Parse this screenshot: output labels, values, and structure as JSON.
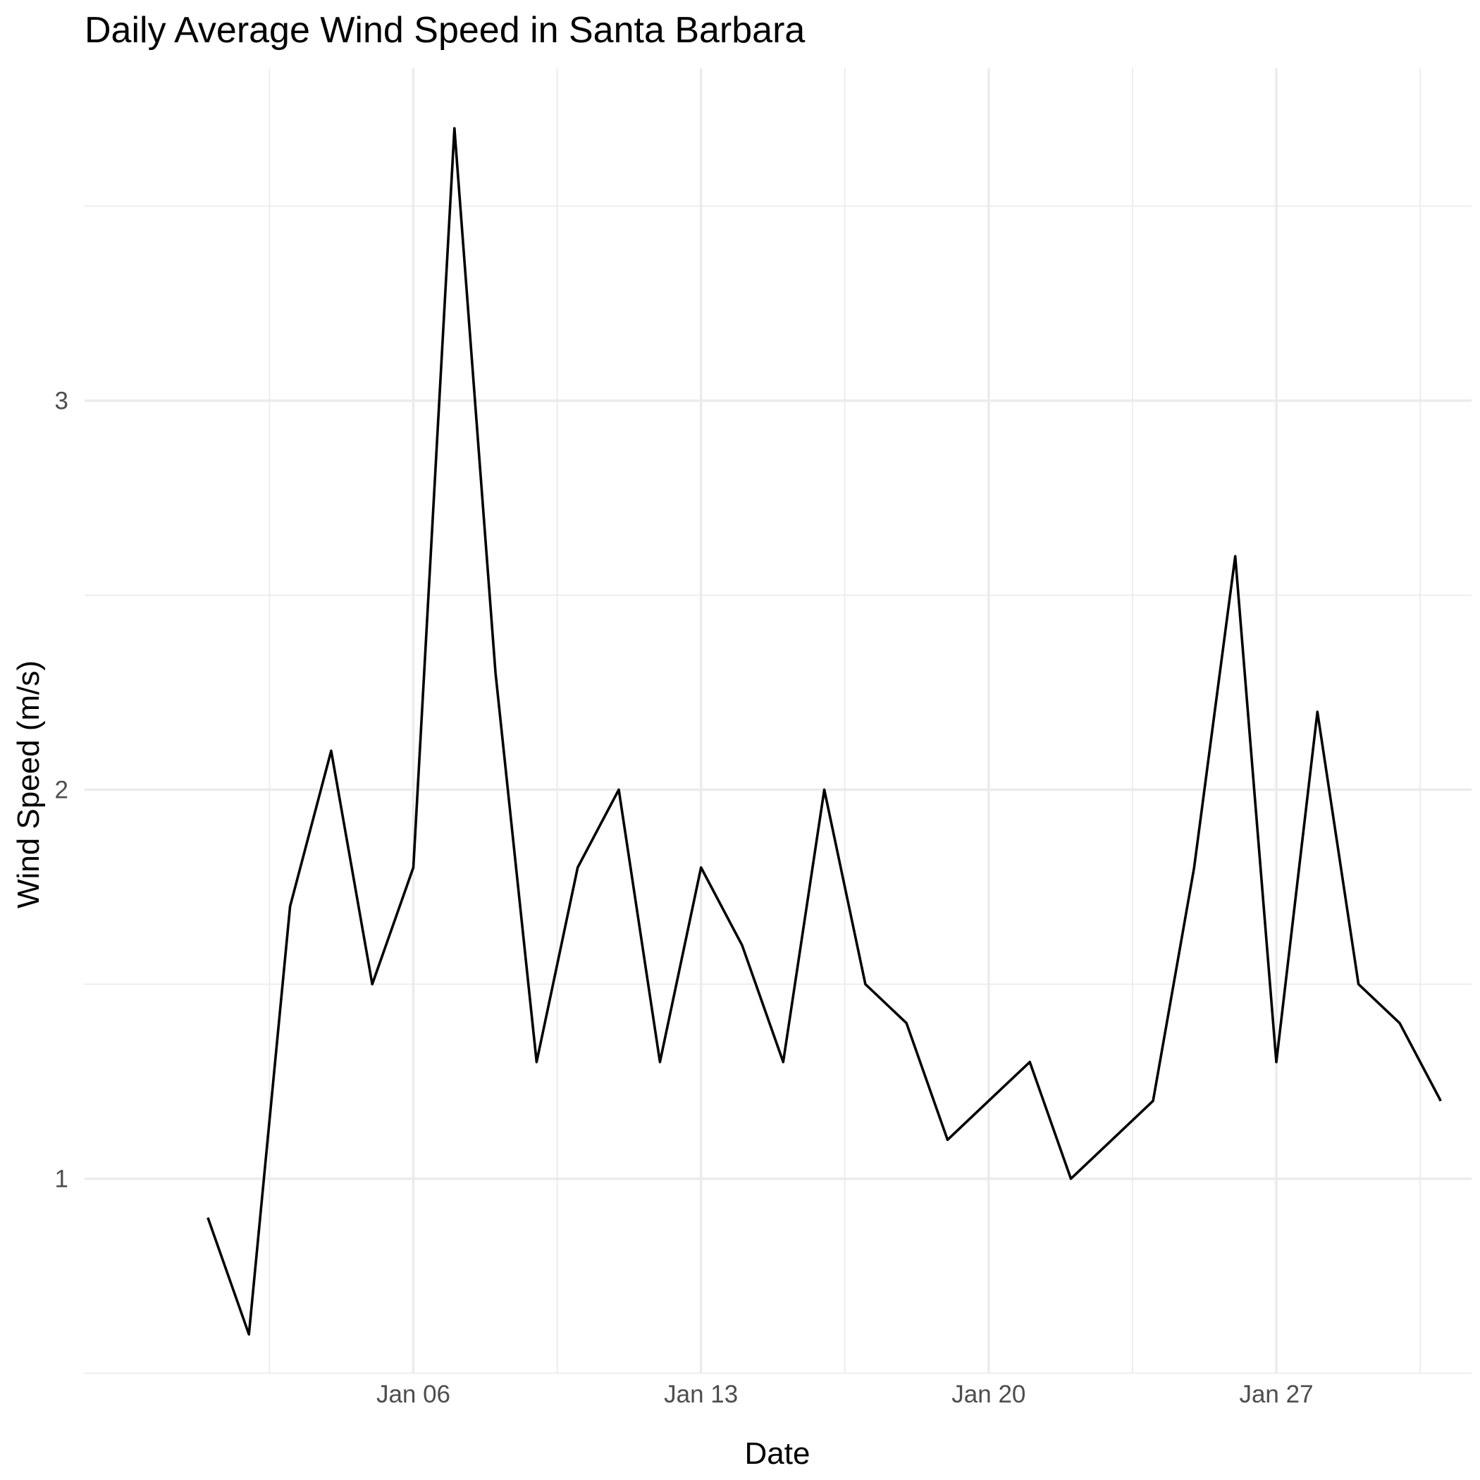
{
  "chart_data": {
    "type": "line",
    "title": "Daily Average Wind Speed in Santa Barbara",
    "xlabel": "Date",
    "ylabel": "Wind Speed (m/s)",
    "x_tick_labels": [
      "Jan 06",
      "Jan 13",
      "Jan 20",
      "Jan 27"
    ],
    "y_tick_labels": [
      "1",
      "2",
      "3"
    ],
    "x": [
      "Jan 01",
      "Jan 02",
      "Jan 03",
      "Jan 04",
      "Jan 05",
      "Jan 06",
      "Jan 07",
      "Jan 08",
      "Jan 09",
      "Jan 10",
      "Jan 11",
      "Jan 12",
      "Jan 13",
      "Jan 14",
      "Jan 15",
      "Jan 16",
      "Jan 17",
      "Jan 18",
      "Jan 19",
      "Jan 20",
      "Jan 21",
      "Jan 22",
      "Jan 23",
      "Jan 24",
      "Jan 25",
      "Jan 26",
      "Jan 27",
      "Jan 28",
      "Jan 29",
      "Jan 30",
      "Jan 31"
    ],
    "values": [
      0.9,
      0.6,
      1.7,
      2.1,
      1.5,
      1.8,
      3.7,
      2.3,
      1.3,
      1.8,
      2.0,
      1.3,
      1.8,
      1.6,
      1.3,
      2.0,
      1.5,
      1.4,
      1.1,
      1.2,
      1.3,
      1.0,
      1.1,
      1.2,
      1.8,
      2.6,
      1.3,
      2.2,
      1.5,
      1.4,
      1.2
    ],
    "ylim": [
      0.5,
      3.75
    ],
    "grid": true,
    "legend": "none",
    "line_color": "#000000"
  }
}
